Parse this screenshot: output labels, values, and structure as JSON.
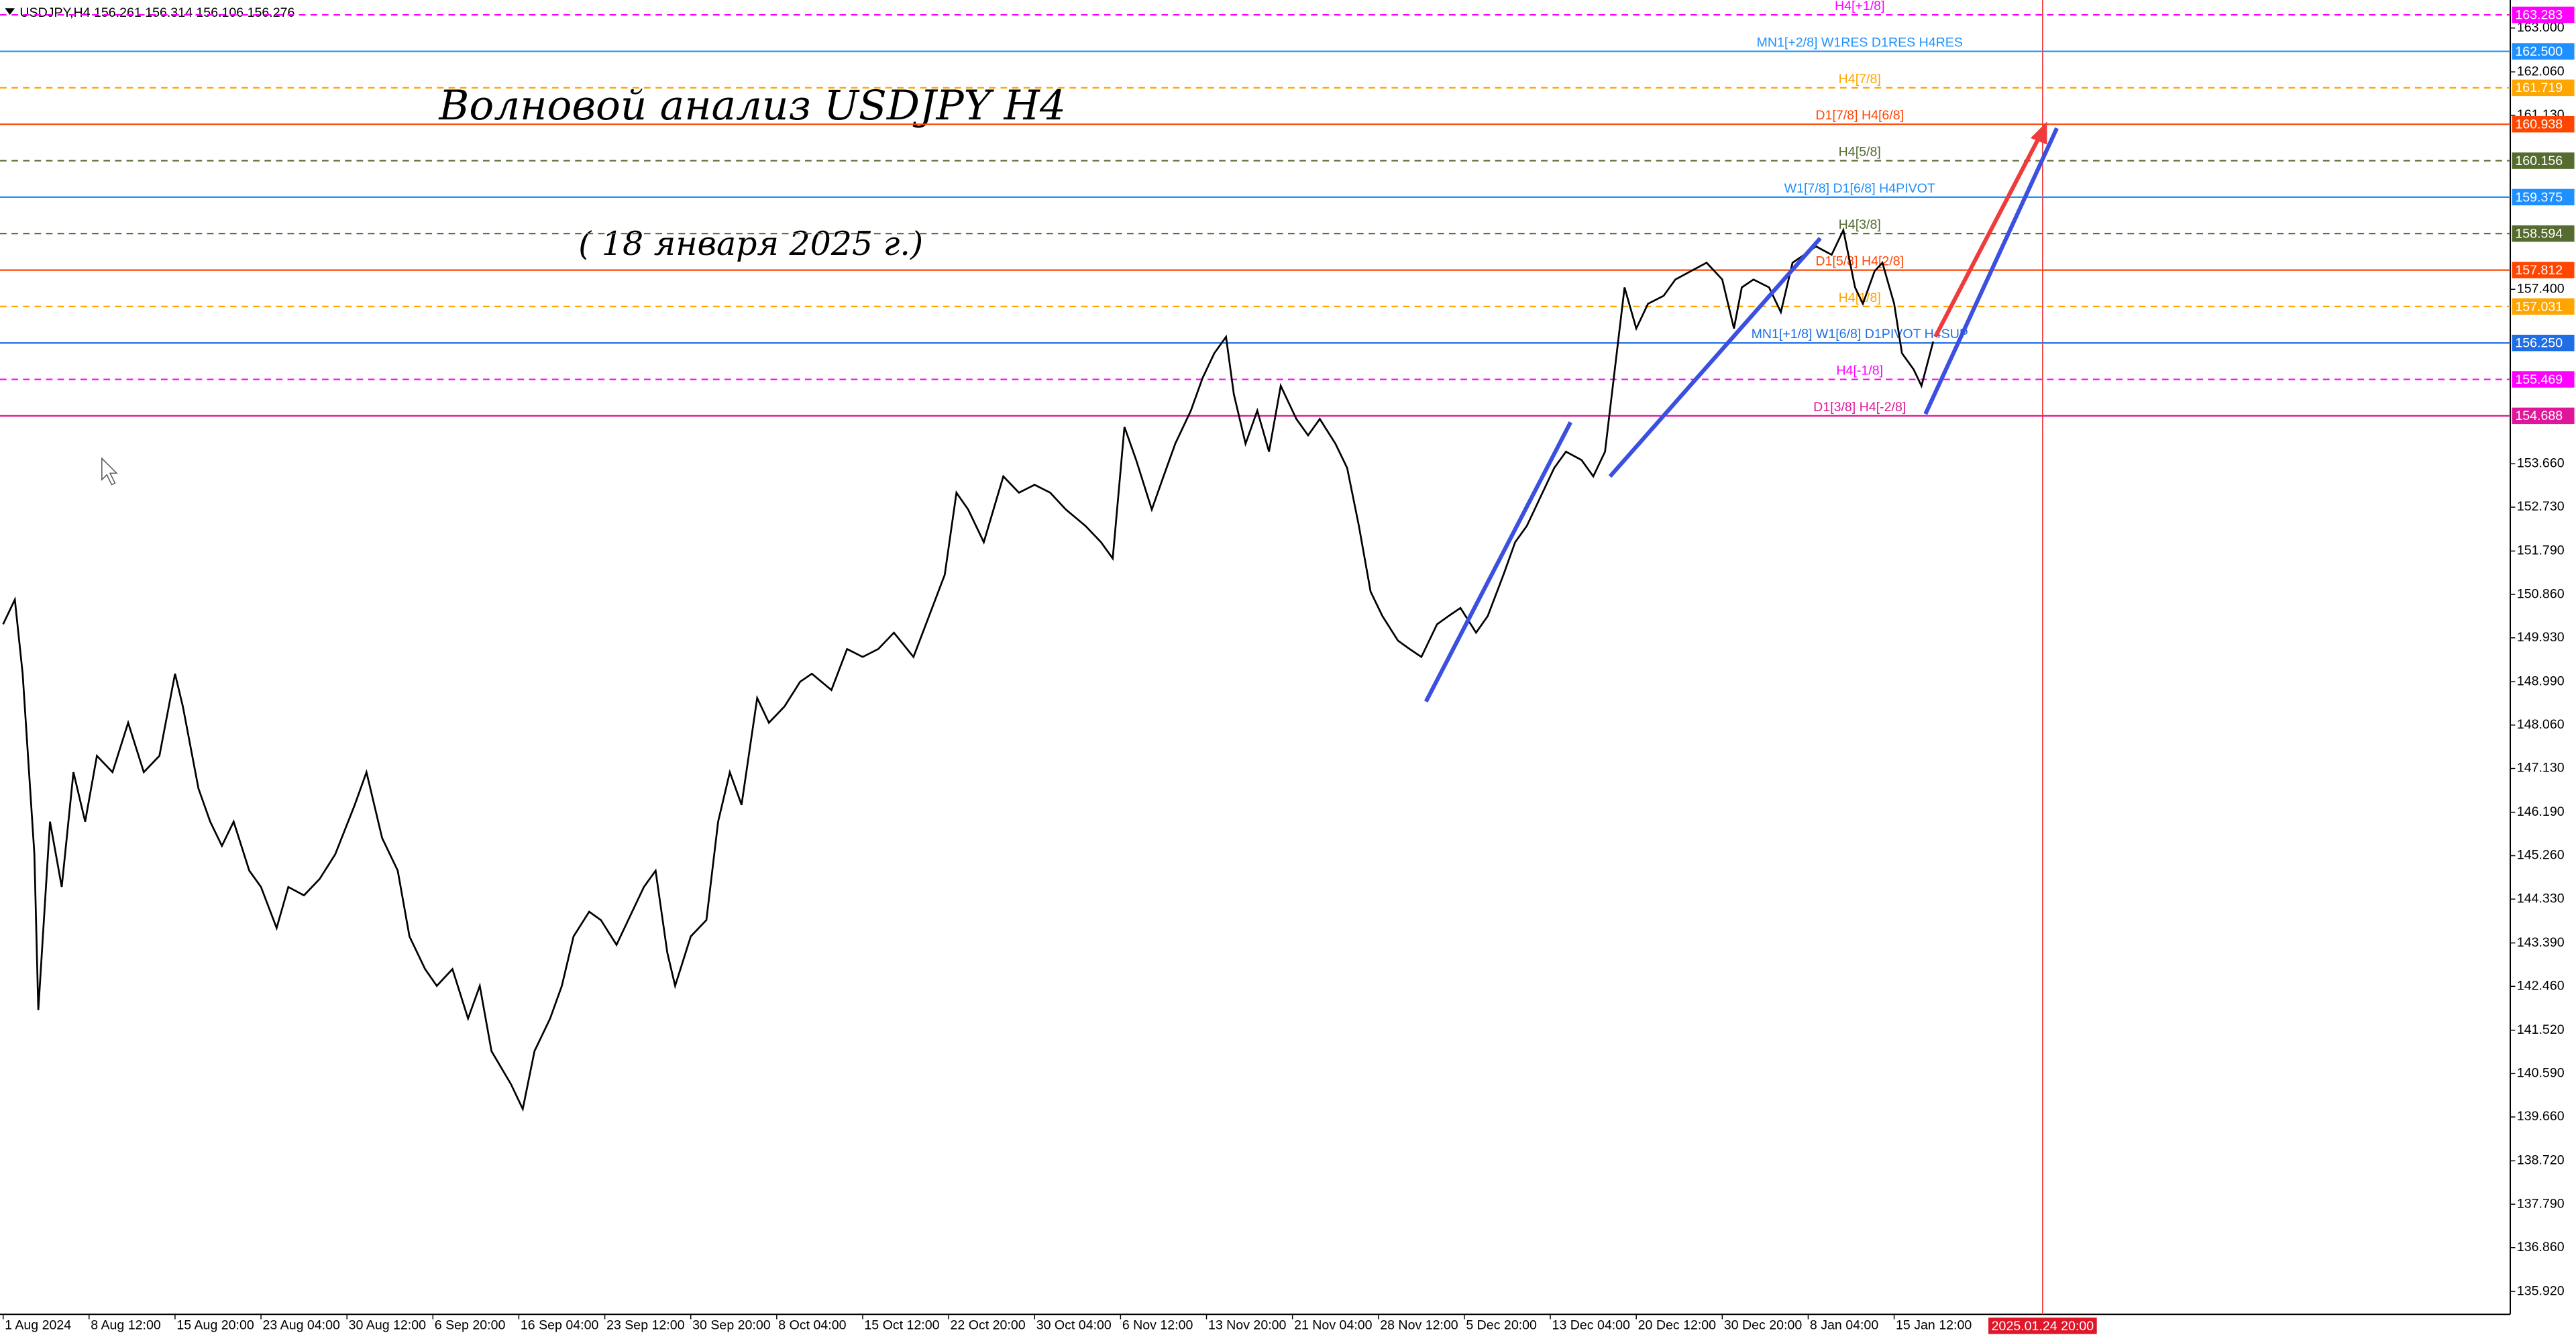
{
  "chart_data": {
    "type": "line",
    "header": "USDJPY,H4  156.261 156.314 156.106 156.276",
    "title": "Волновой анализ USDJPY H4",
    "subtitle": "( 18 января 2025 г.)",
    "color": "#000000",
    "grid": false,
    "xlim": [
      -0.8,
      641.7
    ],
    "ylim": [
      135.43,
      163.6
    ],
    "x": [
      0,
      3,
      5,
      8,
      9,
      12,
      15,
      18,
      21,
      24,
      28,
      32,
      36,
      40,
      44,
      46,
      50,
      53,
      56,
      59,
      63,
      66,
      70,
      73,
      77,
      81,
      85,
      90,
      93,
      97,
      101,
      104,
      108,
      111,
      115,
      119,
      122,
      125,
      130,
      133,
      136,
      140,
      143,
      146,
      150,
      153,
      157,
      161,
      164,
      167,
      170,
      172,
      176,
      180,
      183,
      186,
      189,
      193,
      196,
      200,
      204,
      207,
      212,
      216,
      220,
      224,
      228,
      233,
      237,
      241,
      244,
      247,
      251,
      256,
      260,
      264,
      268,
      272,
      277,
      281,
      284,
      287,
      290,
      294,
      297,
      300,
      304,
      307,
      310,
      313,
      315,
      318,
      321,
      324,
      327,
      331,
      334,
      337,
      341,
      344,
      347,
      350,
      353,
      357,
      360,
      363,
      367,
      370,
      373,
      377,
      380,
      384,
      387,
      390,
      394,
      397,
      400,
      404,
      407,
      410,
      412,
      415,
      418,
      421,
      425,
      428,
      432,
      436,
      440,
      443,
      445,
      448,
      452,
      455,
      458,
      461,
      464,
      468,
      471,
      474,
      476,
      479,
      481,
      484,
      486,
      489,
      491,
      494
    ],
    "values": [
      150.22,
      150.75,
      149.16,
      145.29,
      141.95,
      145.99,
      144.59,
      147.05,
      145.99,
      147.4,
      147.05,
      148.11,
      147.05,
      147.4,
      149.16,
      148.46,
      146.7,
      145.99,
      145.47,
      145.99,
      144.94,
      144.59,
      143.71,
      144.59,
      144.41,
      144.76,
      145.29,
      146.35,
      147.05,
      145.64,
      144.94,
      143.53,
      142.83,
      142.47,
      142.83,
      141.77,
      142.47,
      141.07,
      140.36,
      139.83,
      141.07,
      141.77,
      142.47,
      143.53,
      144.06,
      143.88,
      143.35,
      144.06,
      144.59,
      144.94,
      143.18,
      142.47,
      143.53,
      143.88,
      145.99,
      147.05,
      146.35,
      148.64,
      148.11,
      148.46,
      148.99,
      149.16,
      148.81,
      149.69,
      149.52,
      149.69,
      150.04,
      149.52,
      150.4,
      151.28,
      153.04,
      152.68,
      151.98,
      153.39,
      153.04,
      153.21,
      153.04,
      152.68,
      152.33,
      151.98,
      151.63,
      154.45,
      153.74,
      152.68,
      153.39,
      154.09,
      154.8,
      155.5,
      156.03,
      156.38,
      155.15,
      154.09,
      154.8,
      153.92,
      155.33,
      154.62,
      154.27,
      154.62,
      154.09,
      153.57,
      152.33,
      150.92,
      150.4,
      149.87,
      149.69,
      149.52,
      150.22,
      150.4,
      150.57,
      150.04,
      150.4,
      151.28,
      151.98,
      152.33,
      153.04,
      153.57,
      153.92,
      153.74,
      153.39,
      153.92,
      155.33,
      157.44,
      156.56,
      157.09,
      157.26,
      157.61,
      157.79,
      157.97,
      157.61,
      156.56,
      157.44,
      157.61,
      157.44,
      156.91,
      157.97,
      158.14,
      158.32,
      158.14,
      158.67,
      157.44,
      157.09,
      157.79,
      157.97,
      157.09,
      156.03,
      155.68,
      155.33,
      156.28
    ],
    "xticks": [
      {
        "value": 0,
        "label": "1 Aug 2024"
      },
      {
        "value": 22,
        "label": "8 Aug 12:00"
      },
      {
        "value": 44,
        "label": "15 Aug 20:00"
      },
      {
        "value": 66,
        "label": "23 Aug 04:00"
      },
      {
        "value": 88,
        "label": "30 Aug 12:00"
      },
      {
        "value": 110,
        "label": "6 Sep 20:00"
      },
      {
        "value": 132,
        "label": "16 Sep 04:00"
      },
      {
        "value": 154,
        "label": "23 Sep 12:00"
      },
      {
        "value": 176,
        "label": "30 Sep 20:00"
      },
      {
        "value": 198,
        "label": "8 Oct 04:00"
      },
      {
        "value": 220,
        "label": "15 Oct 12:00"
      },
      {
        "value": 242,
        "label": "22 Oct 20:00"
      },
      {
        "value": 264,
        "label": "30 Oct 04:00"
      },
      {
        "value": 286,
        "label": "6 Nov 12:00"
      },
      {
        "value": 308,
        "label": "13 Nov 20:00"
      },
      {
        "value": 330,
        "label": "21 Nov 04:00"
      },
      {
        "value": 352,
        "label": "28 Nov 12:00"
      },
      {
        "value": 374,
        "label": "5 Dec 20:00"
      },
      {
        "value": 396,
        "label": "13 Dec 04:00"
      },
      {
        "value": 418,
        "label": "20 Dec 12:00"
      },
      {
        "value": 440,
        "label": "30 Dec 20:00"
      },
      {
        "value": 462,
        "label": "8 Jan 04:00"
      },
      {
        "value": 484,
        "label": "15 Jan 12:00"
      }
    ],
    "future_marker": {
      "value": 522,
      "label": "2025.01.24 20:00"
    },
    "yticks": [
      {
        "value": 163,
        "label": "163.000"
      },
      {
        "value": 162.06,
        "label": "162.060"
      },
      {
        "value": 161.13,
        "label": "161.130"
      },
      {
        "value": 157.4,
        "label": "157.400"
      },
      {
        "value": 153.66,
        "label": "153.660"
      },
      {
        "value": 152.73,
        "label": "152.730"
      },
      {
        "value": 151.79,
        "label": "151.790"
      },
      {
        "value": 150.86,
        "label": "150.860"
      },
      {
        "value": 149.93,
        "label": "149.930"
      },
      {
        "value": 148.99,
        "label": "148.990"
      },
      {
        "value": 148.06,
        "label": "148.060"
      },
      {
        "value": 147.13,
        "label": "147.130"
      },
      {
        "value": 146.19,
        "label": "146.190"
      },
      {
        "value": 145.26,
        "label": "145.260"
      },
      {
        "value": 144.33,
        "label": "144.330"
      },
      {
        "value": 143.39,
        "label": "143.390"
      },
      {
        "value": 142.46,
        "label": "142.460"
      },
      {
        "value": 141.52,
        "label": "141.520"
      },
      {
        "value": 140.59,
        "label": "140.590"
      },
      {
        "value": 139.66,
        "label": "139.660"
      },
      {
        "value": 138.72,
        "label": "138.720"
      },
      {
        "value": 137.79,
        "label": "137.790"
      },
      {
        "value": 136.86,
        "label": "136.860"
      },
      {
        "value": 135.92,
        "label": "135.920"
      }
    ],
    "levels": [
      {
        "label": "H4[+1/8]",
        "price": 163.283,
        "color": "#ff00ff",
        "dashed": true
      },
      {
        "label": "MN1[+2/8] W1RES D1RES H4RES",
        "price": {
          "value": 162.5,
          "label": "162.500"
        },
        "color": "#1e90ff",
        "dashed": false
      },
      {
        "label": "H4[7/8]",
        "price": 161.719,
        "color": "#ffa500",
        "dashed": true
      },
      {
        "label": "D1[7/8] H4[6/8]",
        "price": 160.938,
        "color": "#ff4500",
        "dashed": false
      },
      {
        "label": "H4[5/8]",
        "price": 160.156,
        "color": "#556b2f",
        "dashed": true
      },
      {
        "label": "W1[7/8] D1[6/8] H4PIVOT",
        "price": 159.375,
        "color": "#1e90ff",
        "dashed": false
      },
      {
        "label": "H4[3/8]",
        "price": 158.594,
        "color": "#556b2f",
        "dashed": true
      },
      {
        "label": "D1[5/8] H4[2/8]",
        "price": 157.812,
        "color": "#ff4500",
        "dashed": false
      },
      {
        "label": "H4[1/8]",
        "price": 157.031,
        "color": "#ffa500",
        "dashed": true
      },
      {
        "label": "MN1[+1/8] W1[6/8] D1PIVOT H4SUP",
        "price": {
          "value": 156.25,
          "label": "156.250"
        },
        "color": "#1e6ee6",
        "dashed": false
      },
      {
        "label": "H4[-1/8]",
        "price": 155.469,
        "color": "#ff00ff",
        "dashed": true
      },
      {
        "label": "D1[3/8] H4[-2/8]",
        "price": 154.688,
        "color": "#e0169a",
        "dashed": false
      }
    ]
  }
}
